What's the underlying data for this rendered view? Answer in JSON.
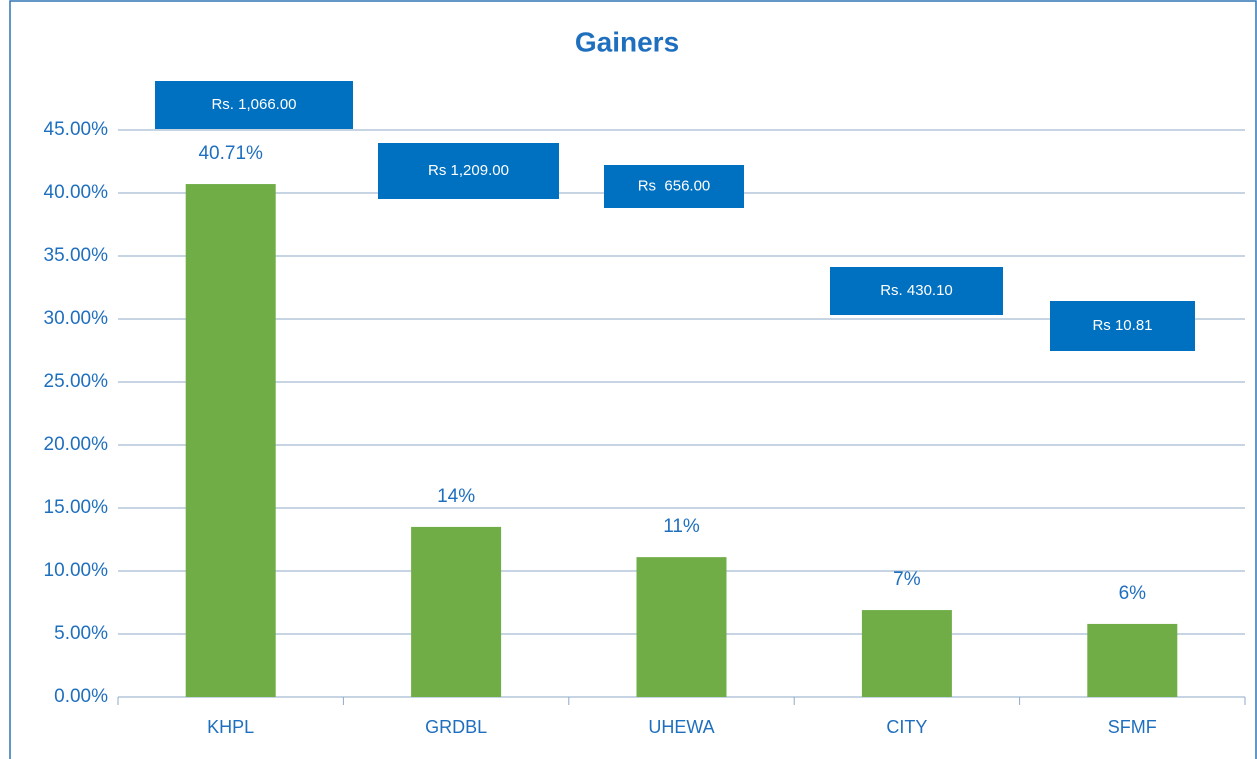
{
  "chart_data": {
    "type": "bar",
    "title": "Gainers",
    "categories": [
      "KHPL",
      "GRDBL",
      "UHEWA",
      "CITY",
      "SFMF"
    ],
    "values": [
      40.71,
      13.5,
      11.1,
      6.9,
      5.8
    ],
    "value_labels": [
      "40.71%",
      "14%",
      "11%",
      "7%",
      "6%"
    ],
    "price_labels": [
      "Rs. 1,066.00",
      "Rs 1,209.00",
      "Rs  656.00",
      "Rs. 430.10",
      "Rs 10.81"
    ],
    "color": "#70ad47",
    "label_box_color": "#0070c0",
    "ylim": [
      0,
      45
    ],
    "yticks": [
      {
        "value": 0,
        "label": "0.00%"
      },
      {
        "value": 5,
        "label": "5.00%"
      },
      {
        "value": 10,
        "label": "10.00%"
      },
      {
        "value": 15,
        "label": "15.00%"
      },
      {
        "value": 20,
        "label": "20.00%"
      },
      {
        "value": 25,
        "label": "25.00%"
      },
      {
        "value": 30,
        "label": "30.00%"
      },
      {
        "value": 35,
        "label": "35.00%"
      },
      {
        "value": 40,
        "label": "40.00%"
      },
      {
        "value": 45,
        "label": "45.00%"
      }
    ],
    "grid": true
  }
}
